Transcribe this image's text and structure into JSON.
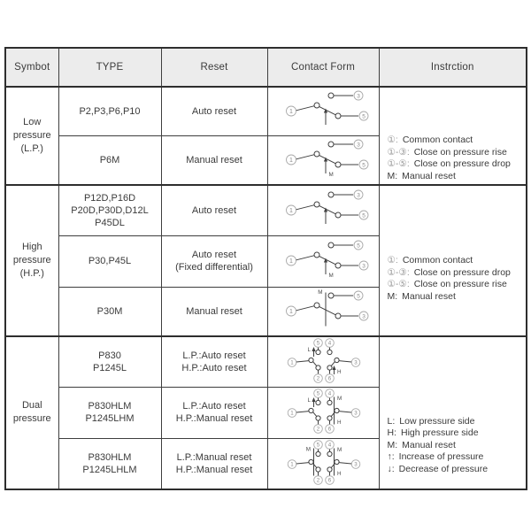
{
  "header": {
    "symbol": "Symbot",
    "type": "TYPE",
    "reset": "Reset",
    "contact_form": "Contact Form",
    "instruction": "Instrction"
  },
  "colors": {
    "table_line": "#3e3e3e",
    "table_line_heavy": "#2e2e2e",
    "header_bg": "#ececec",
    "text": "#3b3b3b",
    "muted_terminal": "#979797",
    "diagram_stroke": "#3f3f3f"
  },
  "sections": [
    {
      "symbol": [
        "Low",
        "pressure",
        "(L.P.)"
      ],
      "rows": [
        {
          "type": [
            "P2,P3,P6,P10"
          ],
          "reset": [
            "Auto reset"
          ],
          "contact": {
            "kind": "spdt",
            "common": "1",
            "top": "3",
            "bottom": "5",
            "marker": "arrow"
          }
        },
        {
          "type": [
            "P6M"
          ],
          "reset": [
            "Manual reset"
          ],
          "contact": {
            "kind": "spdt",
            "common": "1",
            "top": "3",
            "bottom": "5",
            "marker": "arrow-m"
          }
        }
      ],
      "instruction": [
        {
          "k": "①:",
          "t": "Common contact"
        },
        {
          "k": "①-③:",
          "t": "Close on pressure rise"
        },
        {
          "k": "①-⑤:",
          "t": "Close on pressure drop"
        },
        {
          "k": "M:",
          "t": "Manual reset"
        }
      ]
    },
    {
      "symbol": [
        "High",
        "pressure",
        "(H.P.)"
      ],
      "rows": [
        {
          "type": [
            "P12D,P16D",
            "P20D,P30D,D12L",
            "P45DL"
          ],
          "reset": [
            "Auto reset"
          ],
          "contact": {
            "kind": "spdt",
            "common": "1",
            "top": "3",
            "bottom": "5",
            "marker": "arrow"
          }
        },
        {
          "type": [
            "P30,P45L"
          ],
          "reset": [
            "Auto reset",
            "(Fixed differential)"
          ],
          "contact": {
            "kind": "spdt",
            "common": "1",
            "top": "5",
            "bottom": "3",
            "marker": "arrow-m"
          }
        },
        {
          "type": [
            "P30M"
          ],
          "reset": [
            "Manual reset"
          ],
          "contact": {
            "kind": "spdt",
            "common": "1",
            "top": "5",
            "bottom": "3",
            "marker": "latch-m"
          }
        }
      ],
      "instruction": [
        {
          "k": "①:",
          "t": "Common contact"
        },
        {
          "k": "①-③:",
          "t": "Close on pressure drop"
        },
        {
          "k": "①-⑤:",
          "t": "Close on pressure rise"
        },
        {
          "k": "M:",
          "t": "Manual reset"
        }
      ]
    },
    {
      "symbol": [
        "Dual",
        "pressure"
      ],
      "rows": [
        {
          "type": [
            "P830",
            "P1245L"
          ],
          "reset": [
            "L.P.:Auto reset",
            "H.P.:Auto reset"
          ],
          "contact": {
            "kind": "dual",
            "left": {
              "common": "1",
              "top": "5",
              "bottom": "2",
              "marker": "arrow-l"
            },
            "right": {
              "common": "3",
              "top": "4",
              "bottom": "6",
              "marker": "arrow-h"
            }
          }
        },
        {
          "type": [
            "P830HLM",
            "P1245LHM"
          ],
          "reset": [
            "L.P.:Auto reset",
            "H.P.:Manual reset"
          ],
          "contact": {
            "kind": "dual",
            "left": {
              "common": "1",
              "top": "5",
              "bottom": "2",
              "marker": "arrow-l"
            },
            "right": {
              "common": "3",
              "top": "4",
              "bottom": "6",
              "marker": "latch-m-h"
            }
          }
        },
        {
          "type": [
            "P830HLM",
            "P1245LHLM"
          ],
          "reset": [
            "L.P.:Manual reset",
            "H.P.:Manual reset"
          ],
          "contact": {
            "kind": "dual",
            "left": {
              "common": "1",
              "top": "5",
              "bottom": "2",
              "marker": "latch-m"
            },
            "right": {
              "common": "3",
              "top": "4",
              "bottom": "6",
              "marker": "latch-m-h"
            }
          }
        }
      ],
      "instruction": [
        {
          "k": "L:",
          "t": "Low pressure side"
        },
        {
          "k": "H:",
          "t": "High pressure side"
        },
        {
          "k": "M:",
          "t": "Manual reset"
        },
        {
          "k": "↑:",
          "t": "Increase of pressure"
        },
        {
          "k": "↓:",
          "t": "Decrease of pressure"
        }
      ]
    }
  ]
}
